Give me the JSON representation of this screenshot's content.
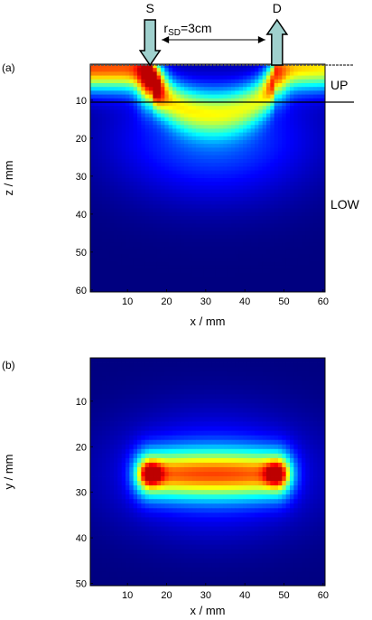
{
  "chart_data": [
    {
      "type": "heatmap",
      "panel_label": "(a)",
      "xlabel": "x / mm",
      "ylabel": "z / mm",
      "xlim": [
        1,
        60
      ],
      "ylim": [
        60,
        1
      ],
      "x_ticks": [
        10,
        20,
        30,
        40,
        50,
        60
      ],
      "y_ticks": [
        10,
        20,
        30,
        40,
        50,
        60
      ],
      "colormap": "jet",
      "source": {
        "label": "S",
        "x": 16
      },
      "detector": {
        "label": "D",
        "x": 48
      },
      "separation_label": {
        "prefix": "r",
        "subscript": "SD",
        "value": "=3cm"
      },
      "layer_boundary_z": 10,
      "layers": [
        "UP",
        "LOW"
      ],
      "hotspots": [
        {
          "x": 16,
          "z": 6,
          "intensity": 1.0
        },
        {
          "x": 48,
          "z": 6,
          "intensity": 0.6
        }
      ]
    },
    {
      "type": "heatmap",
      "panel_label": "(b)",
      "xlabel": "x / mm",
      "ylabel": "y / mm",
      "xlim": [
        1,
        60
      ],
      "ylim": [
        50,
        1
      ],
      "x_ticks": [
        10,
        20,
        30,
        40,
        50,
        60
      ],
      "y_ticks": [
        10,
        20,
        30,
        40,
        50
      ],
      "colormap": "jet",
      "hotspots": [
        {
          "x": 16,
          "y": 26,
          "intensity": 1.0
        },
        {
          "x": 48,
          "y": 26,
          "intensity": 1.0
        }
      ]
    }
  ],
  "colors": {
    "layer_line": "#000000",
    "probe_fill": "#9fd0cd",
    "probe_stroke": "#000000",
    "jet_low": "#00008f",
    "jet_high": "#800000"
  }
}
